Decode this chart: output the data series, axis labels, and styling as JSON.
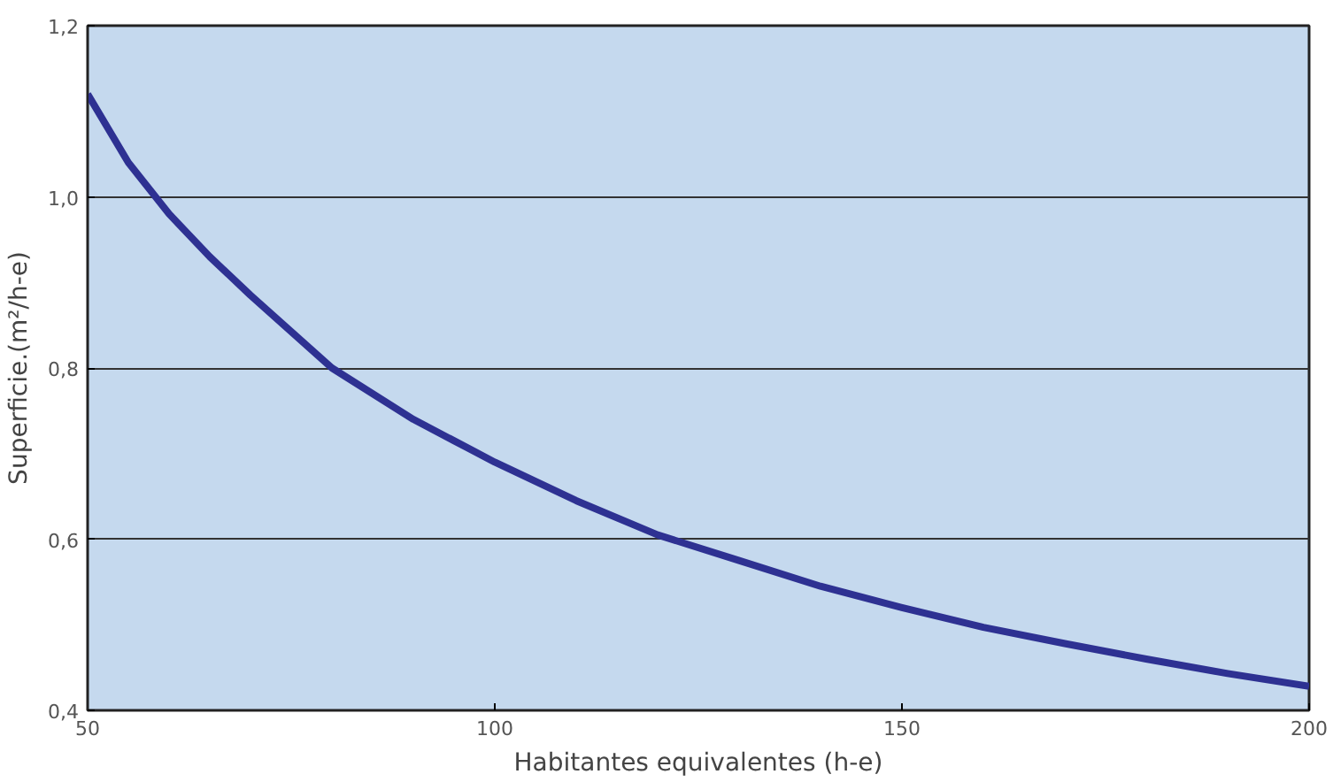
{
  "chart_data": {
    "type": "line",
    "xlabel": "Habitantes equivalentes (h-e)",
    "ylabel": "Superficie.(m²/h-e)",
    "x": [
      50,
      55,
      60,
      65,
      70,
      80,
      90,
      100,
      110,
      120,
      130,
      140,
      150,
      160,
      170,
      180,
      190,
      200
    ],
    "series": [
      {
        "color": "#2e3192",
        "values": [
          1.12,
          1.04,
          0.98,
          0.93,
          0.885,
          0.8,
          0.74,
          0.69,
          0.645,
          0.605,
          0.575,
          0.545,
          0.52,
          0.497,
          0.478,
          0.46,
          0.443,
          0.428
        ]
      }
    ],
    "xlim": [
      50,
      200
    ],
    "ylim": [
      0.4,
      1.2
    ],
    "xticks": [
      50,
      100,
      150,
      200
    ],
    "yticks": [
      {
        "value": 0.4,
        "label": "0,4"
      },
      {
        "value": 0.6,
        "label": "0,6"
      },
      {
        "value": 0.8,
        "label": "0,8"
      },
      {
        "value": 1.0,
        "label": "1,0"
      },
      {
        "value": 1.2,
        "label": "1,2"
      }
    ],
    "grid": "y",
    "marker": "none",
    "line_style": "solid"
  }
}
